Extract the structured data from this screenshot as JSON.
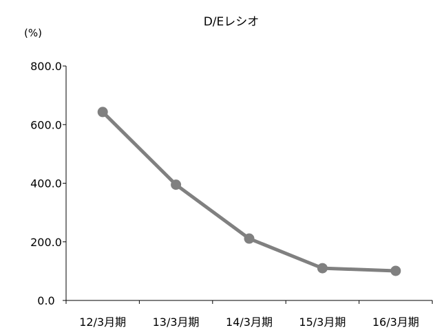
{
  "chart_data": {
    "type": "line",
    "title": "D/Eレシオ",
    "unit_label": "(%)",
    "categories": [
      "12/3月期",
      "13/3月期",
      "14/3月期",
      "15/3月期",
      "16/3月期"
    ],
    "series": [
      {
        "values": [
          643,
          395,
          211,
          110,
          101
        ]
      }
    ],
    "ylim": [
      0,
      800
    ],
    "yticks": [
      0,
      200,
      400,
      600,
      800
    ],
    "ytick_labels": [
      "0.0",
      "200.0",
      "400.0",
      "600.0",
      "800.0"
    ],
    "grid": false,
    "legend": "none",
    "colors": {
      "line": "#808080",
      "marker": "#808080",
      "axis": "#000000"
    }
  }
}
